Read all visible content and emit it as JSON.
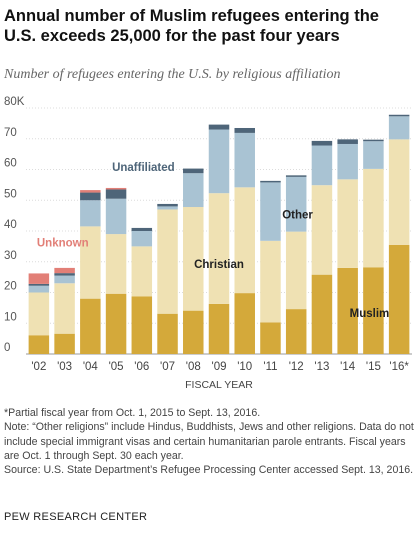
{
  "header": {
    "title": "Annual number of Muslim refugees entering the U.S. exceeds 25,000 for the past four years",
    "subtitle": "Number of refugees entering the U.S. by religious affiliation"
  },
  "chart_data": {
    "type": "bar",
    "stacked": true,
    "categories": [
      "'02",
      "'03",
      "'04",
      "'05",
      "'06",
      "'07",
      "'08",
      "'09",
      "'10",
      "'11",
      "'12",
      "'13",
      "'14",
      "'15",
      "'16*"
    ],
    "series": [
      {
        "name": "Muslim",
        "color": "#d4a93a",
        "values": [
          6.1,
          6.6,
          18.0,
          19.6,
          18.7,
          13.1,
          14.1,
          16.3,
          19.8,
          10.3,
          14.6,
          25.8,
          28.0,
          28.2,
          35.5
        ]
      },
      {
        "name": "Christian",
        "color": "#efe1b3",
        "values": [
          13.9,
          16.4,
          23.5,
          19.4,
          16.3,
          33.9,
          33.7,
          36.0,
          34.4,
          26.5,
          25.2,
          29.1,
          28.8,
          32.0,
          34.3
        ]
      },
      {
        "name": "Other",
        "color": "#a9c3d3",
        "values": [
          2.2,
          2.5,
          8.5,
          11.5,
          5.0,
          1.0,
          11.0,
          20.7,
          17.7,
          19.0,
          17.8,
          12.9,
          11.5,
          9.0,
          7.5
        ]
      },
      {
        "name": "Unaffiliated",
        "color": "#4e6579",
        "values": [
          0.6,
          0.8,
          2.5,
          3.0,
          1.0,
          0.8,
          1.5,
          1.6,
          1.6,
          0.5,
          0.5,
          1.5,
          1.5,
          0.5,
          0.5
        ]
      },
      {
        "name": "Unknown",
        "color": "#e27f77",
        "values": [
          3.4,
          1.7,
          0.8,
          0.5,
          0.0,
          0.0,
          0.0,
          0.0,
          0.0,
          0.0,
          0.0,
          0.0,
          0.0,
          0.0,
          0.0
        ]
      }
    ],
    "labels": {
      "muslim": "Muslim",
      "christian": "Christian",
      "other": "Other",
      "unaffiliated": "Unaffiliated",
      "unknown": "Unknown"
    },
    "ylim": [
      0,
      80
    ],
    "yticks": [
      "0",
      "10",
      "20",
      "30",
      "40",
      "50",
      "60",
      "70",
      "80K"
    ],
    "xlabel": "FISCAL YEAR",
    "grid": true
  },
  "notes": {
    "partial_year": "*Partial fiscal year from Oct. 1, 2015 to Sept. 13, 2016.",
    "note": "Note: “Other religions” include Hindus, Buddhists, Jews and other religions. Data do not include special immigrant visas and certain humanitarian parole entrants. Fiscal years are Oct. 1 through Sept. 30 each year.",
    "source": "Source: U.S. State Department’s Refugee Processing Center accessed Sept. 13, 2016."
  },
  "footer": {
    "org": "PEW RESEARCH CENTER"
  }
}
